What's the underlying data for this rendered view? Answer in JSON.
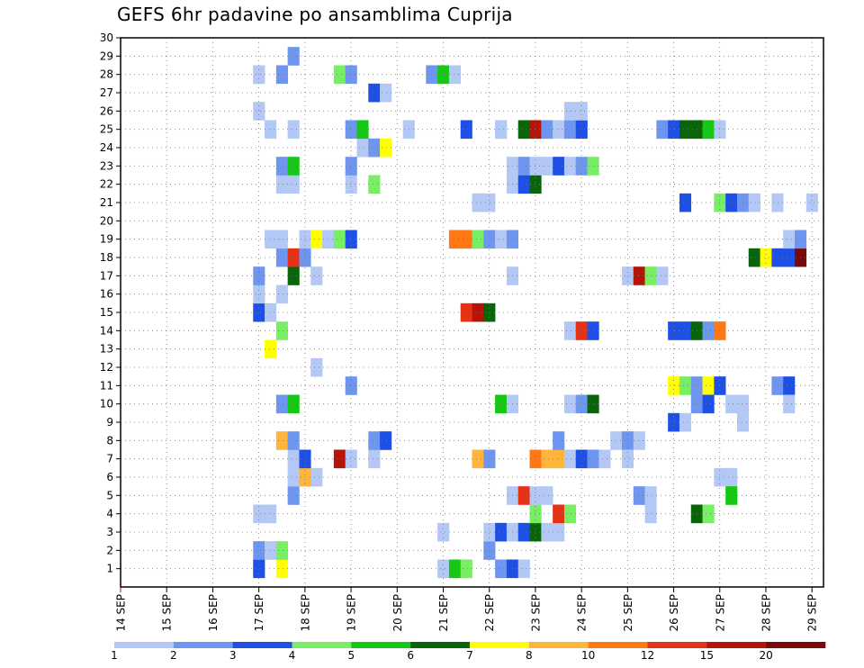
{
  "chart_data": {
    "type": "heatmap",
    "title": "GEFS 6hr padavine po ansamblima Cuprija",
    "xlabel": "",
    "ylabel": "",
    "x_tick_labels": [
      "14 SEP",
      "15 SEP",
      "16 SEP",
      "17 SEP",
      "18 SEP",
      "19 SEP",
      "20 SEP",
      "21 SEP",
      "22 SEP",
      "23 SEP",
      "24 SEP",
      "25 SEP",
      "26 SEP",
      "27 SEP",
      "28 SEP",
      "29 SEP"
    ],
    "y_tick_labels": [
      "1",
      "2",
      "3",
      "4",
      "5",
      "6",
      "7",
      "8",
      "9",
      "10",
      "11",
      "12",
      "13",
      "14",
      "15",
      "16",
      "17",
      "18",
      "19",
      "20",
      "21",
      "22",
      "23",
      "24",
      "25",
      "26",
      "27",
      "28",
      "29",
      "30"
    ],
    "xlim_day": [
      14,
      29.25
    ],
    "ylim": [
      0,
      30
    ],
    "grid": true,
    "colorbar": {
      "levels": [
        "1",
        "2",
        "3",
        "4",
        "5",
        "6",
        "7",
        "8",
        "10",
        "12",
        "15",
        "20"
      ],
      "colors": [
        "#b4c8f5",
        "#6e96ee",
        "#1e50e6",
        "#78ee64",
        "#14c814",
        "#0a640a",
        "#ffff00",
        "#ffb43c",
        "#ff7814",
        "#e63214",
        "#b4140a",
        "#780a0a"
      ]
    },
    "cells": [
      {
        "d": "17.00",
        "m": 1,
        "c": 3
      },
      {
        "d": "17.00",
        "m": 2,
        "c": 2
      },
      {
        "d": "17.25",
        "m": 2,
        "c": 1
      },
      {
        "d": "17.50",
        "m": 1,
        "c": 7
      },
      {
        "d": "17.50",
        "m": 2,
        "c": 4
      },
      {
        "d": "17.00",
        "m": 4,
        "c": 1
      },
      {
        "d": "17.25",
        "m": 4,
        "c": 1
      },
      {
        "d": "17.75",
        "m": 5,
        "c": 2
      },
      {
        "d": "17.75",
        "m": 6,
        "c": 1
      },
      {
        "d": "18.00",
        "m": 6,
        "c": 8
      },
      {
        "d": "18.25",
        "m": 6,
        "c": 1
      },
      {
        "d": "17.75",
        "m": 7,
        "c": 1
      },
      {
        "d": "18.00",
        "m": 7,
        "c": 3
      },
      {
        "d": "18.75",
        "m": 7,
        "c": 11
      },
      {
        "d": "19.00",
        "m": 7,
        "c": 1
      },
      {
        "d": "19.50",
        "m": 7,
        "c": 1
      },
      {
        "d": "17.50",
        "m": 8,
        "c": 8
      },
      {
        "d": "17.75",
        "m": 8,
        "c": 2
      },
      {
        "d": "19.50",
        "m": 8,
        "c": 2
      },
      {
        "d": "19.75",
        "m": 8,
        "c": 3
      },
      {
        "d": "17.50",
        "m": 10,
        "c": 2
      },
      {
        "d": "17.75",
        "m": 10,
        "c": 5
      },
      {
        "d": "19.00",
        "m": 11,
        "c": 2
      },
      {
        "d": "18.25",
        "m": 12,
        "c": 1
      },
      {
        "d": "17.25",
        "m": 13,
        "c": 7
      },
      {
        "d": "17.50",
        "m": 14,
        "c": 4
      },
      {
        "d": "17.00",
        "m": 15,
        "c": 3
      },
      {
        "d": "17.25",
        "m": 15,
        "c": 1
      },
      {
        "d": "17.00",
        "m": 16,
        "c": 1
      },
      {
        "d": "17.50",
        "m": 16,
        "c": 1
      },
      {
        "d": "17.00",
        "m": 17,
        "c": 2
      },
      {
        "d": "17.75",
        "m": 17,
        "c": 6
      },
      {
        "d": "18.25",
        "m": 17,
        "c": 1
      },
      {
        "d": "17.50",
        "m": 18,
        "c": 2
      },
      {
        "d": "17.75",
        "m": 18,
        "c": 10
      },
      {
        "d": "18.00",
        "m": 18,
        "c": 2
      },
      {
        "d": "17.25",
        "m": 19,
        "c": 1
      },
      {
        "d": "17.50",
        "m": 19,
        "c": 1
      },
      {
        "d": "18.00",
        "m": 19,
        "c": 1
      },
      {
        "d": "18.25",
        "m": 19,
        "c": 7
      },
      {
        "d": "18.50",
        "m": 19,
        "c": 1
      },
      {
        "d": "18.75",
        "m": 19,
        "c": 4
      },
      {
        "d": "19.00",
        "m": 19,
        "c": 3
      },
      {
        "d": "17.50",
        "m": 22,
        "c": 1
      },
      {
        "d": "17.75",
        "m": 22,
        "c": 1
      },
      {
        "d": "19.00",
        "m": 22,
        "c": 1
      },
      {
        "d": "19.50",
        "m": 22,
        "c": 4
      },
      {
        "d": "17.50",
        "m": 23,
        "c": 2
      },
      {
        "d": "17.75",
        "m": 23,
        "c": 5
      },
      {
        "d": "19.00",
        "m": 23,
        "c": 2
      },
      {
        "d": "19.25",
        "m": 24,
        "c": 1
      },
      {
        "d": "19.50",
        "m": 24,
        "c": 2
      },
      {
        "d": "19.75",
        "m": 24,
        "c": 7
      },
      {
        "d": "17.25",
        "m": 25,
        "c": 1
      },
      {
        "d": "17.75",
        "m": 25,
        "c": 1
      },
      {
        "d": "19.00",
        "m": 25,
        "c": 2
      },
      {
        "d": "19.25",
        "m": 25,
        "c": 5
      },
      {
        "d": "20.25",
        "m": 25,
        "c": 1
      },
      {
        "d": "17.00",
        "m": 26,
        "c": 1
      },
      {
        "d": "17.00",
        "m": 28,
        "c": 1
      },
      {
        "d": "19.50",
        "m": 27,
        "c": 3
      },
      {
        "d": "19.75",
        "m": 27,
        "c": 1
      },
      {
        "d": "17.00",
        "m": 28,
        "c": 1
      },
      {
        "d": "17.50",
        "m": 28,
        "c": 2
      },
      {
        "d": "18.75",
        "m": 28,
        "c": 4
      },
      {
        "d": "19.00",
        "m": 28,
        "c": 2
      },
      {
        "d": "17.75",
        "m": 29,
        "c": 2
      },
      {
        "d": "21.00",
        "m": 1,
        "c": 1
      },
      {
        "d": "21.25",
        "m": 1,
        "c": 5
      },
      {
        "d": "21.50",
        "m": 1,
        "c": 4
      },
      {
        "d": "21.00",
        "m": 3,
        "c": 1
      },
      {
        "d": "21.75",
        "m": 7,
        "c": 8
      },
      {
        "d": "22.00",
        "m": 7,
        "c": 2
      },
      {
        "d": "21.50",
        "m": 15,
        "c": 10
      },
      {
        "d": "21.75",
        "m": 15,
        "c": 11
      },
      {
        "d": "22.00",
        "m": 15,
        "c": 6
      },
      {
        "d": "21.25",
        "m": 19,
        "c": 9
      },
      {
        "d": "21.50",
        "m": 19,
        "c": 9
      },
      {
        "d": "21.75",
        "m": 19,
        "c": 4
      },
      {
        "d": "22.00",
        "m": 19,
        "c": 2
      },
      {
        "d": "22.25",
        "m": 19,
        "c": 1
      },
      {
        "d": "22.50",
        "m": 19,
        "c": 2
      },
      {
        "d": "21.75",
        "m": 21,
        "c": 1
      },
      {
        "d": "22.00",
        "m": 21,
        "c": 1
      },
      {
        "d": "21.50",
        "m": 25,
        "c": 3
      },
      {
        "d": "22.25",
        "m": 25,
        "c": 1
      },
      {
        "d": "20.75",
        "m": 28,
        "c": 2
      },
      {
        "d": "21.00",
        "m": 28,
        "c": 5
      },
      {
        "d": "21.25",
        "m": 28,
        "c": 1
      },
      {
        "d": "22.25",
        "m": 1,
        "c": 2
      },
      {
        "d": "22.50",
        "m": 1,
        "c": 3
      },
      {
        "d": "22.75",
        "m": 1,
        "c": 1
      },
      {
        "d": "22.00",
        "m": 2,
        "c": 2
      },
      {
        "d": "22.00",
        "m": 3,
        "c": 1
      },
      {
        "d": "22.25",
        "m": 3,
        "c": 3
      },
      {
        "d": "22.50",
        "m": 3,
        "c": 1
      },
      {
        "d": "22.75",
        "m": 3,
        "c": 3
      },
      {
        "d": "23.00",
        "m": 3,
        "c": 6
      },
      {
        "d": "23.25",
        "m": 3,
        "c": 1
      },
      {
        "d": "23.50",
        "m": 3,
        "c": 1
      },
      {
        "d": "23.00",
        "m": 4,
        "c": 4
      },
      {
        "d": "23.50",
        "m": 4,
        "c": 10
      },
      {
        "d": "23.75",
        "m": 4,
        "c": 4
      },
      {
        "d": "22.50",
        "m": 5,
        "c": 1
      },
      {
        "d": "22.75",
        "m": 5,
        "c": 10
      },
      {
        "d": "23.00",
        "m": 5,
        "c": 1
      },
      {
        "d": "23.25",
        "m": 5,
        "c": 1
      },
      {
        "d": "23.00",
        "m": 7,
        "c": 9
      },
      {
        "d": "23.25",
        "m": 7,
        "c": 8
      },
      {
        "d": "23.50",
        "m": 7,
        "c": 8
      },
      {
        "d": "23.75",
        "m": 7,
        "c": 1
      },
      {
        "d": "24.00",
        "m": 7,
        "c": 3
      },
      {
        "d": "24.25",
        "m": 7,
        "c": 2
      },
      {
        "d": "24.50",
        "m": 7,
        "c": 1
      },
      {
        "d": "23.50",
        "m": 8,
        "c": 2
      },
      {
        "d": "22.25",
        "m": 10,
        "c": 5
      },
      {
        "d": "22.50",
        "m": 10,
        "c": 1
      },
      {
        "d": "23.75",
        "m": 10,
        "c": 1
      },
      {
        "d": "24.00",
        "m": 10,
        "c": 2
      },
      {
        "d": "24.25",
        "m": 10,
        "c": 6
      },
      {
        "d": "23.75",
        "m": 14,
        "c": 1
      },
      {
        "d": "24.00",
        "m": 14,
        "c": 10
      },
      {
        "d": "24.25",
        "m": 14,
        "c": 3
      },
      {
        "d": "22.50",
        "m": 17,
        "c": 1
      },
      {
        "d": "22.50",
        "m": 22,
        "c": 1
      },
      {
        "d": "22.75",
        "m": 22,
        "c": 3
      },
      {
        "d": "23.00",
        "m": 22,
        "c": 6
      },
      {
        "d": "22.50",
        "m": 23,
        "c": 1
      },
      {
        "d": "22.75",
        "m": 23,
        "c": 2
      },
      {
        "d": "23.00",
        "m": 23,
        "c": 1
      },
      {
        "d": "23.25",
        "m": 23,
        "c": 1
      },
      {
        "d": "23.50",
        "m": 23,
        "c": 3
      },
      {
        "d": "23.75",
        "m": 23,
        "c": 1
      },
      {
        "d": "24.00",
        "m": 23,
        "c": 2
      },
      {
        "d": "24.25",
        "m": 23,
        "c": 4
      },
      {
        "d": "22.75",
        "m": 25,
        "c": 6
      },
      {
        "d": "23.00",
        "m": 25,
        "c": 11
      },
      {
        "d": "23.25",
        "m": 25,
        "c": 2
      },
      {
        "d": "23.50",
        "m": 25,
        "c": 1
      },
      {
        "d": "23.75",
        "m": 25,
        "c": 2
      },
      {
        "d": "24.00",
        "m": 25,
        "c": 3
      },
      {
        "d": "22.25",
        "m": 25,
        "c": 1
      },
      {
        "d": "23.75",
        "m": 26,
        "c": 1
      },
      {
        "d": "24.00",
        "m": 26,
        "c": 1
      },
      {
        "d": "24.75",
        "m": 8,
        "c": 1
      },
      {
        "d": "25.00",
        "m": 8,
        "c": 2
      },
      {
        "d": "25.25",
        "m": 8,
        "c": 1
      },
      {
        "d": "25.00",
        "m": 7,
        "c": 1
      },
      {
        "d": "25.25",
        "m": 5,
        "c": 2
      },
      {
        "d": "25.50",
        "m": 5,
        "c": 1
      },
      {
        "d": "25.50",
        "m": 4,
        "c": 1
      },
      {
        "d": "26.00",
        "m": 9,
        "c": 3
      },
      {
        "d": "26.25",
        "m": 9,
        "c": 1
      },
      {
        "d": "25.00",
        "m": 17,
        "c": 1
      },
      {
        "d": "25.25",
        "m": 17,
        "c": 11
      },
      {
        "d": "25.50",
        "m": 17,
        "c": 4
      },
      {
        "d": "25.75",
        "m": 17,
        "c": 1
      },
      {
        "d": "26.00",
        "m": 11,
        "c": 7
      },
      {
        "d": "26.25",
        "m": 11,
        "c": 4
      },
      {
        "d": "26.50",
        "m": 11,
        "c": 2
      },
      {
        "d": "26.75",
        "m": 11,
        "c": 7
      },
      {
        "d": "27.00",
        "m": 11,
        "c": 3
      },
      {
        "d": "26.50",
        "m": 10,
        "c": 2
      },
      {
        "d": "26.75",
        "m": 10,
        "c": 3
      },
      {
        "d": "27.25",
        "m": 10,
        "c": 1
      },
      {
        "d": "27.50",
        "m": 10,
        "c": 1
      },
      {
        "d": "27.50",
        "m": 9,
        "c": 1
      },
      {
        "d": "26.00",
        "m": 14,
        "c": 3
      },
      {
        "d": "26.25",
        "m": 14,
        "c": 3
      },
      {
        "d": "26.50",
        "m": 14,
        "c": 6
      },
      {
        "d": "26.75",
        "m": 14,
        "c": 2
      },
      {
        "d": "27.00",
        "m": 14,
        "c": 9
      },
      {
        "d": "27.00",
        "m": 6,
        "c": 1
      },
      {
        "d": "27.25",
        "m": 6,
        "c": 1
      },
      {
        "d": "27.25",
        "m": 5,
        "c": 5
      },
      {
        "d": "26.50",
        "m": 4,
        "c": 6
      },
      {
        "d": "26.75",
        "m": 4,
        "c": 4
      },
      {
        "d": "26.25",
        "m": 21,
        "c": 3
      },
      {
        "d": "27.00",
        "m": 21,
        "c": 4
      },
      {
        "d": "27.25",
        "m": 21,
        "c": 3
      },
      {
        "d": "27.50",
        "m": 21,
        "c": 2
      },
      {
        "d": "27.75",
        "m": 21,
        "c": 1
      },
      {
        "d": "28.25",
        "m": 21,
        "c": 1
      },
      {
        "d": "29.00",
        "m": 21,
        "c": 1
      },
      {
        "d": "25.75",
        "m": 25,
        "c": 2
      },
      {
        "d": "26.00",
        "m": 25,
        "c": 3
      },
      {
        "d": "26.25",
        "m": 25,
        "c": 6
      },
      {
        "d": "26.50",
        "m": 25,
        "c": 6
      },
      {
        "d": "26.75",
        "m": 25,
        "c": 5
      },
      {
        "d": "27.00",
        "m": 25,
        "c": 1
      },
      {
        "d": "27.75",
        "m": 18,
        "c": 6
      },
      {
        "d": "28.00",
        "m": 18,
        "c": 7
      },
      {
        "d": "28.25",
        "m": 18,
        "c": 3
      },
      {
        "d": "28.50",
        "m": 18,
        "c": 3
      },
      {
        "d": "28.75",
        "m": 18,
        "c": 12
      },
      {
        "d": "28.50",
        "m": 19,
        "c": 1
      },
      {
        "d": "28.75",
        "m": 19,
        "c": 2
      },
      {
        "d": "28.25",
        "m": 11,
        "c": 2
      },
      {
        "d": "28.50",
        "m": 11,
        "c": 3
      },
      {
        "d": "28.50",
        "m": 10,
        "c": 1
      }
    ]
  }
}
